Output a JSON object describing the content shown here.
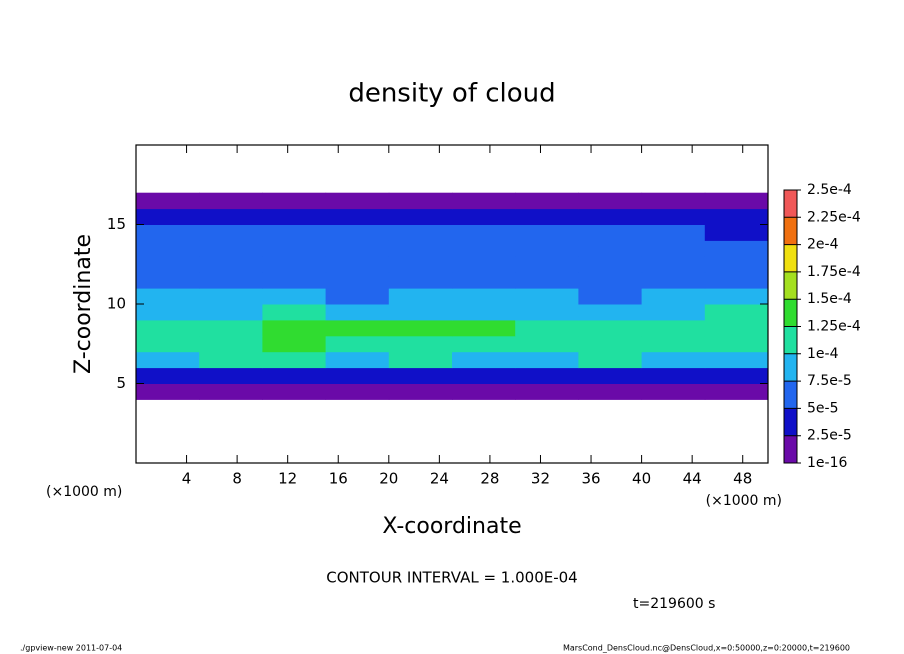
{
  "chart_data": {
    "type": "heatmap",
    "title": "density of cloud",
    "xlabel": "X-coordinate",
    "ylabel": "Z-coordinate",
    "x_unit": "(×1000 m)",
    "y_unit": "(×1000 m)",
    "xlim": [
      0,
      50
    ],
    "xticks": [
      4,
      8,
      12,
      16,
      20,
      24,
      28,
      32,
      36,
      40,
      44,
      48
    ],
    "ylim": [
      0,
      20
    ],
    "yticks": [
      5,
      10,
      15
    ],
    "xbins": [
      0,
      5,
      10,
      15,
      20,
      25,
      30,
      35,
      40,
      45,
      50
    ],
    "ybins": [
      0,
      1,
      2,
      3,
      4,
      5,
      6,
      7,
      8,
      9,
      10,
      11,
      12,
      13,
      14,
      15,
      16,
      17,
      18,
      19,
      20
    ],
    "values": [
      [
        null,
        null,
        null,
        null,
        null,
        null,
        null,
        null,
        null,
        null
      ],
      [
        null,
        null,
        null,
        null,
        null,
        null,
        null,
        null,
        null,
        null
      ],
      [
        null,
        null,
        null,
        null,
        null,
        null,
        null,
        null,
        null,
        null
      ],
      [
        null,
        null,
        null,
        null,
        null,
        null,
        null,
        null,
        null,
        null
      ],
      [
        1e-05,
        1e-05,
        1e-05,
        1e-05,
        1e-05,
        1e-05,
        1e-05,
        1e-05,
        1e-05,
        1e-05
      ],
      [
        4e-05,
        3e-05,
        4e-05,
        4e-05,
        3e-05,
        4e-05,
        3e-05,
        4e-05,
        3e-05,
        4e-05
      ],
      [
        9e-05,
        0.0001,
        0.0001,
        9e-05,
        0.0001,
        9e-05,
        9e-05,
        0.0001,
        9e-05,
        9e-05
      ],
      [
        0.00011,
        0.00012,
        0.00013,
        0.00012,
        0.00012,
        0.00012,
        0.00011,
        0.00012,
        0.00011,
        0.00011
      ],
      [
        0.00011,
        0.00012,
        0.00014,
        0.00014,
        0.00013,
        0.00013,
        0.00012,
        0.00012,
        0.00011,
        0.00011
      ],
      [
        9e-05,
        9e-05,
        0.0001,
        9e-05,
        9e-05,
        9e-05,
        9e-05,
        9e-05,
        9e-05,
        0.0001
      ],
      [
        8e-05,
        8e-05,
        8e-05,
        7e-05,
        8e-05,
        8e-05,
        8e-05,
        7e-05,
        8e-05,
        8e-05
      ],
      [
        7e-05,
        7e-05,
        7e-05,
        7e-05,
        6e-05,
        7e-05,
        7e-05,
        6e-05,
        6e-05,
        7e-05
      ],
      [
        6e-05,
        6e-05,
        6e-05,
        6e-05,
        6e-05,
        5e-05,
        6e-05,
        6e-05,
        5e-05,
        6e-05
      ],
      [
        6e-05,
        5e-05,
        6e-05,
        5e-05,
        6e-05,
        5e-05,
        5e-05,
        6e-05,
        5e-05,
        5e-05
      ],
      [
        5e-05,
        5e-05,
        5e-05,
        5e-05,
        5e-05,
        5e-05,
        5e-05,
        5e-05,
        5e-05,
        4e-05
      ],
      [
        3e-05,
        3e-05,
        3e-05,
        3e-05,
        3e-05,
        3e-05,
        3e-05,
        3e-05,
        3e-05,
        3e-05
      ],
      [
        1e-05,
        1e-05,
        1e-05,
        1e-05,
        1e-05,
        1e-05,
        1e-05,
        1e-05,
        1e-05,
        1e-05
      ],
      [
        null,
        null,
        null,
        null,
        null,
        null,
        null,
        null,
        null,
        null
      ],
      [
        null,
        null,
        null,
        null,
        null,
        null,
        null,
        null,
        null,
        null
      ],
      [
        null,
        null,
        null,
        null,
        null,
        null,
        null,
        null,
        null,
        null
      ]
    ],
    "colorbar": {
      "ticks": [
        {
          "value": 1e-16,
          "label": "1e-16"
        },
        {
          "value": 2.5e-05,
          "label": "2.5e-5"
        },
        {
          "value": 5e-05,
          "label": "5e-5"
        },
        {
          "value": 7.5e-05,
          "label": "7.5e-5"
        },
        {
          "value": 0.0001,
          "label": "1e-4"
        },
        {
          "value": 0.000125,
          "label": "1.25e-4"
        },
        {
          "value": 0.00015,
          "label": "1.5e-4"
        },
        {
          "value": 0.000175,
          "label": "1.75e-4"
        },
        {
          "value": 0.0002,
          "label": "2e-4"
        },
        {
          "value": 0.000225,
          "label": "2.25e-4"
        },
        {
          "value": 0.00025,
          "label": "2.5e-4"
        }
      ],
      "colors": [
        "#6a0aa8",
        "#1010c8",
        "#2266ee",
        "#22b4f0",
        "#20e0a0",
        "#30dc30",
        "#a4e020",
        "#f0e010",
        "#f07010",
        "#f05858"
      ]
    },
    "annotations": {
      "contour": "CONTOUR INTERVAL = 1.000E-04",
      "time": "t=219600 s",
      "footer_left": "./gpview-new   2011-07-04",
      "footer_right": "MarsCond_DensCloud.nc@DensCloud,x=0:50000,z=0:20000,t=219600"
    }
  }
}
